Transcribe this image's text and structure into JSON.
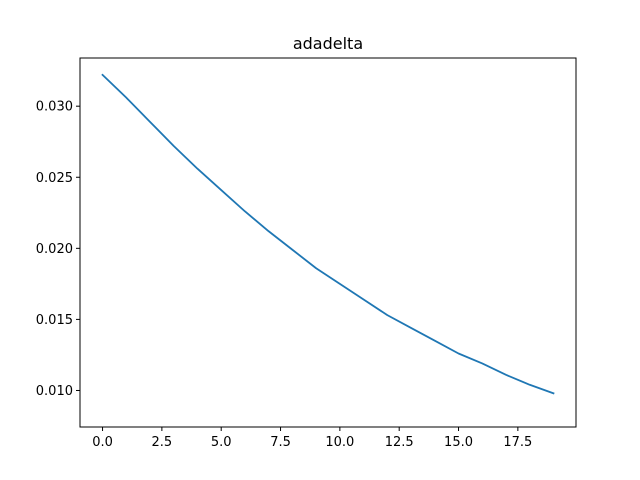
{
  "chart_data": {
    "type": "line",
    "title": "adadelta",
    "xlabel": "",
    "ylabel": "",
    "xlim": [
      -0.95,
      19.95
    ],
    "ylim": [
      0.00743,
      0.03339
    ],
    "grid": false,
    "legend": "none",
    "x_ticks": [
      0.0,
      2.5,
      5.0,
      7.5,
      10.0,
      12.5,
      15.0,
      17.5
    ],
    "x_tick_labels": [
      "0.0",
      "2.5",
      "5.0",
      "7.5",
      "10.0",
      "12.5",
      "15.0",
      "17.5"
    ],
    "y_ticks": [
      0.01,
      0.015,
      0.02,
      0.025,
      0.03
    ],
    "y_tick_labels": [
      "0.010",
      "0.015",
      "0.020",
      "0.025",
      "0.030"
    ],
    "series": [
      {
        "color": "#1f77b4",
        "x": [
          0,
          1,
          2,
          3,
          4,
          5,
          6,
          7,
          8,
          9,
          10,
          11,
          12,
          13,
          14,
          15,
          16,
          17,
          18,
          19
        ],
        "y": [
          0.0322,
          0.0306,
          0.0289,
          0.0272,
          0.0256,
          0.0241,
          0.0226,
          0.0212,
          0.0199,
          0.0186,
          0.0175,
          0.0164,
          0.0153,
          0.0144,
          0.0135,
          0.0126,
          0.0119,
          0.0111,
          0.0104,
          0.0098
        ]
      }
    ]
  }
}
